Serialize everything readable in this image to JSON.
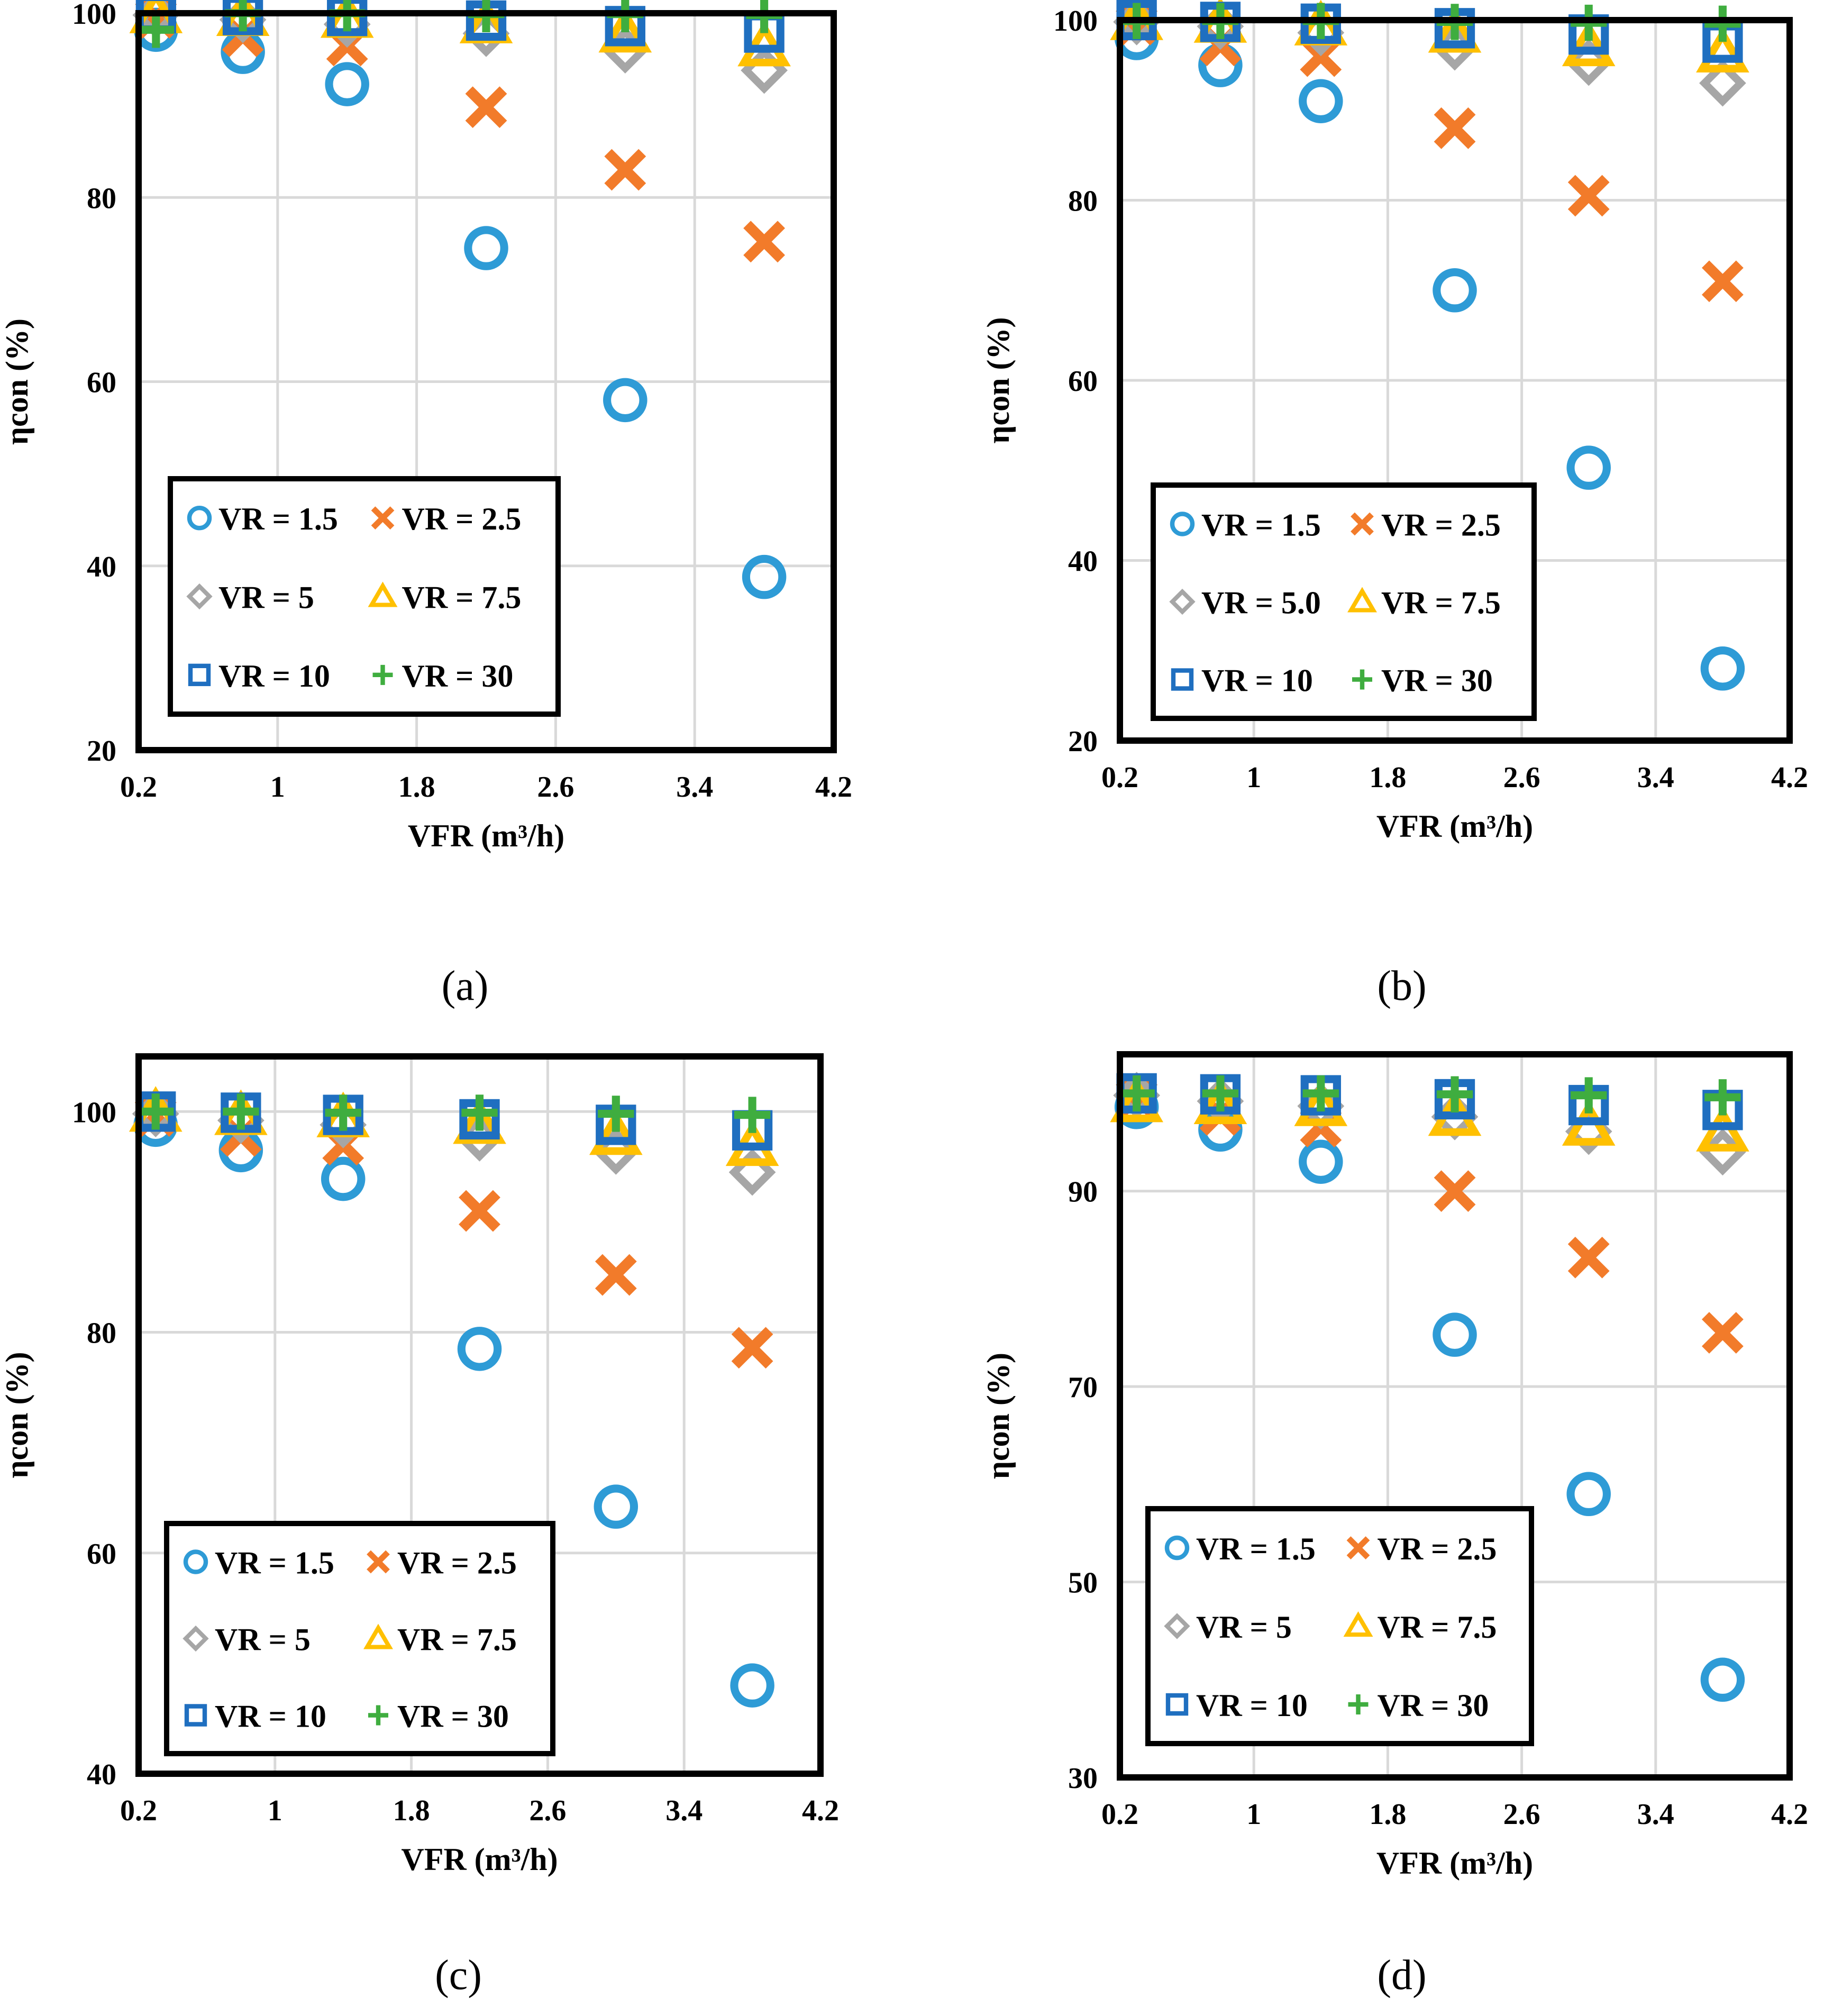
{
  "figure_title": "",
  "colors": {
    "VR = 1.5": "#2e9bd6",
    "VR = 2.5": "#f27b2a",
    "VR = 5": "#a6a6a6",
    "VR = 7.5": "#ffc000",
    "VR = 10": "#1f6fc0",
    "VR = 30": "#3fad3f"
  },
  "chart_data": [
    {
      "type": "scatter",
      "caption": "(a)",
      "xlabel": "VFR (m³/h)",
      "ylabel": "ηcon (%)",
      "xlim": [
        0.2,
        4.2
      ],
      "ylim": [
        20,
        100
      ],
      "xticks": [
        "0.2",
        "1",
        "1.8",
        "2.6",
        "3.4",
        "4.2"
      ],
      "yticks": [
        "20",
        "40",
        "60",
        "80",
        "100"
      ],
      "legend": "bottom-left",
      "x": [
        0.3,
        0.8,
        1.4,
        2.2,
        3.0,
        3.8
      ],
      "series": [
        {
          "name": "VR = 1.5",
          "marker": "circle",
          "values": [
            98.2,
            95.8,
            92.3,
            74.5,
            58.0,
            38.8
          ]
        },
        {
          "name": "VR = 2.5",
          "marker": "x",
          "values": [
            99.5,
            97.5,
            96.5,
            89.8,
            83.0,
            75.2
          ]
        },
        {
          "name": "VR = 5",
          "marker": "diamond",
          "values": [
            99.8,
            99.3,
            98.8,
            97.8,
            96.0,
            93.8
          ]
        },
        {
          "name": "VR = 7.5",
          "marker": "triangle",
          "values": [
            99.9,
            99.6,
            99.4,
            98.8,
            97.8,
            96.3
          ]
        },
        {
          "name": "VR = 10",
          "marker": "square",
          "values": [
            100.0,
            99.8,
            99.7,
            99.2,
            98.6,
            97.9
          ]
        },
        {
          "name": "VR = 30",
          "marker": "plus",
          "values": [
            98.2,
            100.0,
            100.0,
            99.9,
            99.9,
            99.8
          ]
        }
      ]
    },
    {
      "type": "scatter",
      "caption": "(b)",
      "xlabel": "VFR (m³/h)",
      "ylabel": "ηcon (%)",
      "xlim": [
        0.2,
        4.2
      ],
      "ylim": [
        20,
        100
      ],
      "xticks": [
        "0.2",
        "1",
        "1.8",
        "2.6",
        "3.4",
        "4.2"
      ],
      "yticks": [
        "20",
        "40",
        "60",
        "80",
        "100"
      ],
      "legend": "bottom-left",
      "x": [
        0.3,
        0.8,
        1.4,
        2.2,
        3.0,
        3.8
      ],
      "series": [
        {
          "name": "VR = 1.5",
          "marker": "circle",
          "values": [
            98.0,
            95.0,
            91.0,
            70.0,
            50.3,
            28.0
          ]
        },
        {
          "name": "VR = 2.5",
          "marker": "x",
          "values": [
            99.5,
            97.2,
            96.0,
            88.0,
            80.5,
            71.0
          ]
        },
        {
          "name": "VR = 5.0",
          "marker": "diamond",
          "values": [
            99.8,
            99.3,
            98.6,
            97.0,
            95.3,
            93.0
          ]
        },
        {
          "name": "VR = 7.5",
          "marker": "triangle",
          "values": [
            99.9,
            99.6,
            99.3,
            98.5,
            97.0,
            96.3
          ]
        },
        {
          "name": "VR = 10",
          "marker": "square",
          "values": [
            100.0,
            99.8,
            99.6,
            99.1,
            98.4,
            97.5
          ]
        },
        {
          "name": "VR = 30",
          "marker": "plus",
          "values": [
            99.9,
            99.9,
            99.9,
            99.8,
            99.7,
            99.6
          ]
        }
      ]
    },
    {
      "type": "scatter",
      "caption": "(c)",
      "xlabel": "VFR (m³/h)",
      "ylabel": "ηcon (%)",
      "xlim": [
        0.2,
        4.2
      ],
      "ylim": [
        40,
        105
      ],
      "xticks": [
        "0.2",
        "1",
        "1.8",
        "2.6",
        "3.4",
        "4.2"
      ],
      "yticks": [
        "40",
        "60",
        "80",
        "100"
      ],
      "legend": "bottom-left",
      "x": [
        0.3,
        0.8,
        1.4,
        2.2,
        3.0,
        3.8
      ],
      "series": [
        {
          "name": "VR = 1.5",
          "marker": "circle",
          "values": [
            98.8,
            96.5,
            93.9,
            78.5,
            64.2,
            48.0
          ]
        },
        {
          "name": "VR = 2.5",
          "marker": "x",
          "values": [
            99.6,
            97.8,
            97.0,
            91.0,
            85.2,
            78.6
          ]
        },
        {
          "name": "VR = 5",
          "marker": "diamond",
          "values": [
            99.8,
            99.2,
            98.8,
            97.6,
            96.4,
            94.5
          ]
        },
        {
          "name": "VR = 7.5",
          "marker": "triangle",
          "values": [
            99.9,
            99.6,
            99.4,
            98.8,
            97.8,
            96.8
          ]
        },
        {
          "name": "VR = 10",
          "marker": "square",
          "values": [
            100.0,
            99.9,
            99.7,
            99.3,
            98.8,
            98.3
          ]
        },
        {
          "name": "VR = 30",
          "marker": "plus",
          "values": [
            100.0,
            100.0,
            99.9,
            99.9,
            99.8,
            99.7
          ]
        }
      ]
    },
    {
      "type": "scatter",
      "caption": "(d)",
      "xlabel": "VFR (m³/h)",
      "ylabel": "ηcon (%)",
      "xlim": [
        0.2,
        4.2
      ],
      "ylim": [
        30,
        104
      ],
      "xticks": [
        "0.2",
        "1",
        "1.8",
        "2.6",
        "3.4",
        "4.2"
      ],
      "yticks": [
        "30",
        "50",
        "70",
        "90"
      ],
      "legend": "bottom-left",
      "x": [
        0.3,
        0.8,
        1.4,
        2.2,
        3.0,
        3.8
      ],
      "series": [
        {
          "name": "VR = 1.5",
          "marker": "circle",
          "values": [
            98.6,
            96.3,
            93.0,
            75.3,
            59.0,
            40.0
          ]
        },
        {
          "name": "VR = 2.5",
          "marker": "x",
          "values": [
            99.5,
            97.8,
            96.6,
            90.0,
            83.2,
            75.5
          ]
        },
        {
          "name": "VR = 5",
          "marker": "diamond",
          "values": [
            99.8,
            99.2,
            98.7,
            97.6,
            96.1,
            94.0
          ]
        },
        {
          "name": "VR = 7.5",
          "marker": "triangle",
          "values": [
            99.0,
            98.8,
            98.6,
            97.6,
            96.6,
            96.0
          ]
        },
        {
          "name": "VR = 10",
          "marker": "square",
          "values": [
            100.0,
            99.9,
            99.8,
            99.4,
            98.8,
            98.3
          ]
        },
        {
          "name": "VR = 30",
          "marker": "plus",
          "values": [
            100.0,
            100.0,
            100.0,
            99.9,
            99.8,
            99.6
          ]
        }
      ]
    }
  ]
}
